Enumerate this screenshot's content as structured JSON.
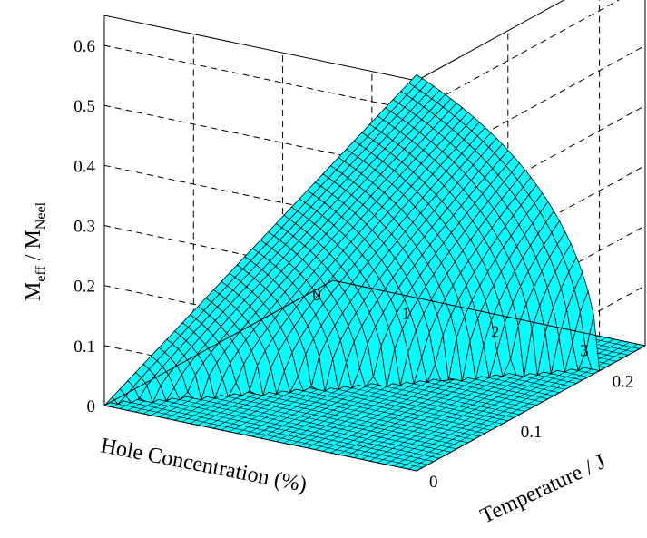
{
  "chart_data": {
    "type": "surface",
    "title": "",
    "zlabel": {
      "main": "M",
      "sub1": "eff",
      "mid": " / M",
      "sub2": "Neel"
    },
    "xlabel": "Hole Concentration (%)",
    "ylabel": "Temperature / J",
    "xticks": [
      "0",
      "1",
      "2",
      "3"
    ],
    "yticks": [
      "0",
      "0.1",
      "0.2"
    ],
    "zticks": [
      "0",
      "0.1",
      "0.2",
      "0.3",
      "0.4",
      "0.5",
      "0.6"
    ],
    "xlim": [
      0,
      3.5
    ],
    "ylim": [
      0,
      0.25
    ],
    "zlim": [
      0,
      0.65
    ],
    "grid": true,
    "surface_color": "#00ffff",
    "mesh_color": "#000000",
    "surface_description_values": {
      "peak_M_eff_over_M_Neel": 0.66,
      "peak_at_hole_concentration_percent": 3.5,
      "peak_at_temperature_over_J": 0,
      "critical_temperature_over_J_at_3_5_percent": 0.2
    }
  }
}
